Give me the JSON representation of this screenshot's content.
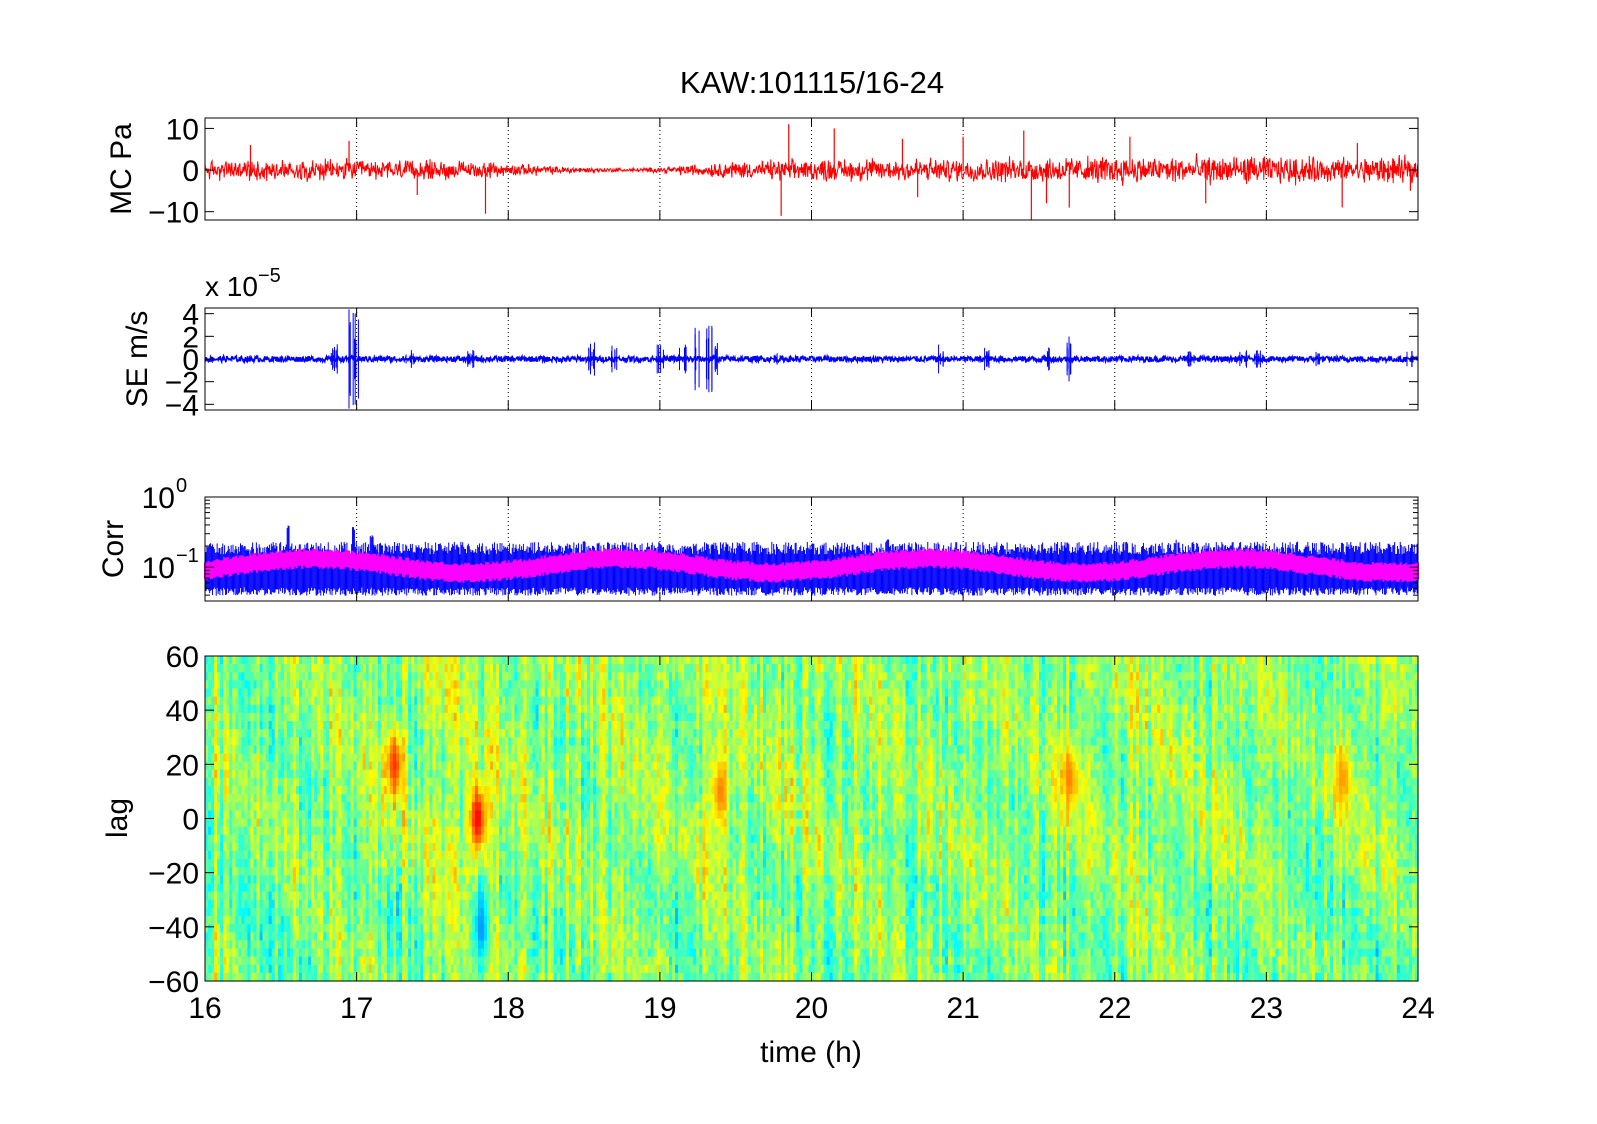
{
  "figure": {
    "title": "KAW:101115/16-24",
    "xlabel": "time (h)"
  },
  "colors": {
    "mc_trace": "#ff0000",
    "se_trace": "#0000ff",
    "corr_envelope": "#0000ff",
    "corr_median": "#ff00ff",
    "heatmap_colormap": "jet",
    "frame": "#000000",
    "grid": "#000000"
  },
  "chart_data": [
    {
      "type": "line",
      "name": "MC",
      "ylabel": "MC Pa",
      "xlim": [
        16,
        24
      ],
      "ylim": [
        -12,
        12.5
      ],
      "xticks": [
        16,
        17,
        18,
        19,
        20,
        21,
        22,
        23,
        24
      ],
      "yticks": [
        -10,
        0,
        10
      ],
      "ytick_labels": [
        "−10",
        "0",
        "10"
      ],
      "grid": "vertical dotted",
      "series": [
        {
          "color": "#ff0000",
          "noise_envelope": {
            "x": [
              16,
              16.5,
              17,
              17.5,
              18,
              18.5,
              18.8,
              19,
              19.3,
              19.6,
              20,
              20.5,
              21,
              21.5,
              22,
              22.5,
              23,
              23.5,
              24
            ],
            "amplitude": [
              1.8,
              2.0,
              2.0,
              1.8,
              1.2,
              0.5,
              0.35,
              0.5,
              1.3,
              1.7,
              2.0,
              2.2,
              2.2,
              2.4,
              2.5,
              2.6,
              2.5,
              2.4,
              2.4
            ]
          },
          "spikes": [
            {
              "x": 16.3,
              "y": 6
            },
            {
              "x": 16.95,
              "y": 7
            },
            {
              "x": 17.4,
              "y": -6
            },
            {
              "x": 17.85,
              "y": -10.5
            },
            {
              "x": 19.8,
              "y": -11
            },
            {
              "x": 19.85,
              "y": 11
            },
            {
              "x": 20.15,
              "y": 10
            },
            {
              "x": 20.6,
              "y": 7.5
            },
            {
              "x": 20.7,
              "y": -6.5
            },
            {
              "x": 21.0,
              "y": 8
            },
            {
              "x": 21.4,
              "y": 9.5
            },
            {
              "x": 21.45,
              "y": -12
            },
            {
              "x": 21.55,
              "y": -8
            },
            {
              "x": 21.7,
              "y": -9
            },
            {
              "x": 22.1,
              "y": 8
            },
            {
              "x": 22.6,
              "y": -8
            },
            {
              "x": 23.5,
              "y": -9
            },
            {
              "x": 23.6,
              "y": 6.5
            },
            {
              "x": 23.95,
              "y": -5
            }
          ]
        }
      ]
    },
    {
      "type": "line",
      "name": "SE",
      "ylabel": "SE m/s",
      "y_multiplier": "x 10",
      "y_multiplier_exponent": "−5",
      "xlim": [
        16,
        24
      ],
      "ylim": [
        -4.5,
        4.5
      ],
      "xticks": [
        16,
        17,
        18,
        19,
        20,
        21,
        22,
        23,
        24
      ],
      "yticks": [
        -4,
        -2,
        0,
        2,
        4
      ],
      "ytick_labels": [
        "−4",
        "−2",
        "0",
        "2",
        "4"
      ],
      "grid": "vertical dotted",
      "series": [
        {
          "color": "#0000ff",
          "baseline_amplitude": 0.25,
          "bursts": [
            {
              "x": 16.85,
              "amplitude": 1.5
            },
            {
              "x": 16.97,
              "amplitude": 4.5
            },
            {
              "x": 17.0,
              "amplitude": 4.3
            },
            {
              "x": 17.35,
              "amplitude": 0.8
            },
            {
              "x": 17.75,
              "amplitude": 0.8
            },
            {
              "x": 18.55,
              "amplitude": 1.7
            },
            {
              "x": 18.7,
              "amplitude": 1.3
            },
            {
              "x": 19.0,
              "amplitude": 1.3
            },
            {
              "x": 19.15,
              "amplitude": 1.5
            },
            {
              "x": 19.25,
              "amplitude": 2.8
            },
            {
              "x": 19.32,
              "amplitude": 3.0
            },
            {
              "x": 19.38,
              "amplitude": 2.0
            },
            {
              "x": 19.75,
              "amplitude": 0.8
            },
            {
              "x": 20.85,
              "amplitude": 1.3
            },
            {
              "x": 21.15,
              "amplitude": 1.0
            },
            {
              "x": 21.55,
              "amplitude": 1.5
            },
            {
              "x": 21.7,
              "amplitude": 2.0
            },
            {
              "x": 22.5,
              "amplitude": 0.7
            },
            {
              "x": 22.85,
              "amplitude": 0.8
            },
            {
              "x": 22.95,
              "amplitude": 0.8
            },
            {
              "x": 23.35,
              "amplitude": 0.7
            },
            {
              "x": 23.95,
              "amplitude": 0.8
            }
          ]
        }
      ]
    },
    {
      "type": "line",
      "name": "Corr",
      "ylabel": "Corr",
      "yscale": "log",
      "xlim": [
        16,
        24
      ],
      "ylim": [
        0.033,
        1
      ],
      "xticks": [
        16,
        17,
        18,
        19,
        20,
        21,
        22,
        23,
        24
      ],
      "yticks": [
        0.1,
        1
      ],
      "ytick_labels": [
        {
          "base": "10",
          "exp": "−1"
        },
        {
          "base": "10",
          "exp": "0"
        }
      ],
      "grid": "vertical dotted",
      "series": [
        {
          "role": "envelope",
          "color": "#0000ff",
          "upper_typical": 0.2,
          "upper_peaks": [
            {
              "x": 16.55,
              "y": 0.42
            },
            {
              "x": 16.98,
              "y": 0.38
            },
            {
              "x": 17.1,
              "y": 0.3
            },
            {
              "x": 18.5,
              "y": 0.25
            },
            {
              "x": 20.5,
              "y": 0.26
            },
            {
              "x": 22.4,
              "y": 0.25
            },
            {
              "x": 23.2,
              "y": 0.24
            }
          ],
          "lower_typical": 0.045
        },
        {
          "role": "median",
          "color": "#ff00ff",
          "band": [
            0.08,
            0.14
          ]
        }
      ]
    },
    {
      "type": "heatmap",
      "name": "lag",
      "ylabel": "lag",
      "colormap": "jet",
      "xlim": [
        16,
        24
      ],
      "ylim": [
        -60,
        60
      ],
      "xticks": [
        16,
        17,
        18,
        19,
        20,
        21,
        22,
        23,
        24
      ],
      "yticks": [
        -60,
        -40,
        -20,
        0,
        20,
        40,
        60
      ],
      "ytick_labels": [
        "−60",
        "−40",
        "−20",
        "0",
        "20",
        "40",
        "60"
      ],
      "color_range": [
        -1,
        1
      ],
      "typical_value_range": [
        -0.35,
        0.45
      ],
      "features": [
        {
          "x": 17.25,
          "y": 20,
          "value": 0.65
        },
        {
          "x": 17.8,
          "y": 0,
          "value": 0.75
        },
        {
          "x": 17.82,
          "y": -40,
          "value": -0.45
        },
        {
          "x": 19.4,
          "y": 10,
          "value": 0.5
        },
        {
          "x": 21.7,
          "y": 15,
          "value": 0.5
        },
        {
          "x": 23.5,
          "y": 15,
          "value": 0.45
        }
      ]
    }
  ]
}
